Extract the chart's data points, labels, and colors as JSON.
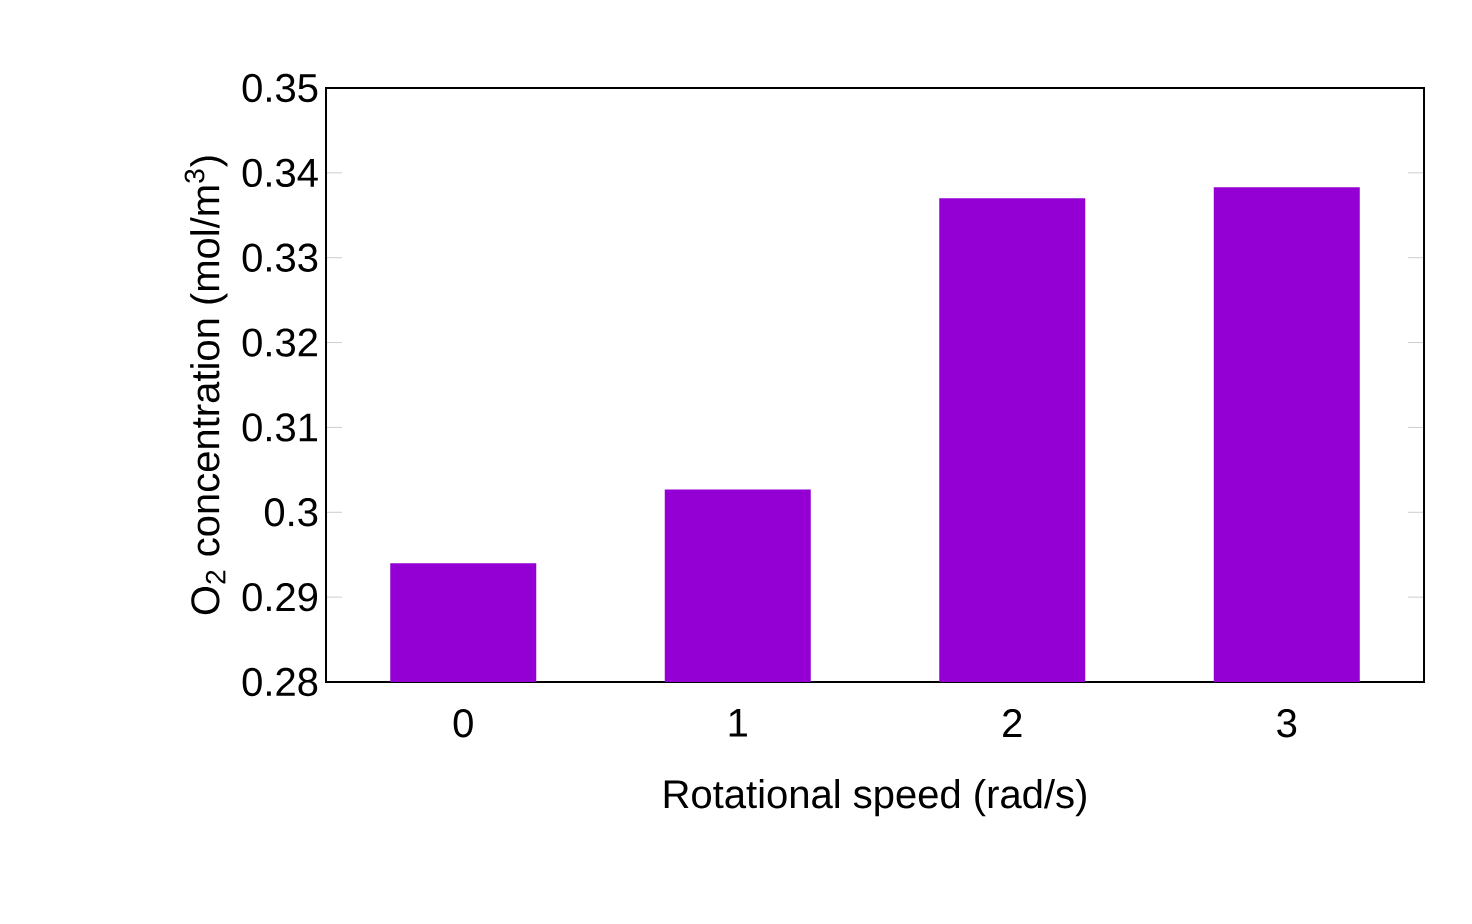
{
  "chart_data": {
    "type": "bar",
    "xlabel": "Rotational speed (rad/s)",
    "ylabel": "O$_{2}$ concentration (mol/m$^{3}$)",
    "categories": [
      "0",
      "1",
      "2",
      "3"
    ],
    "values": [
      0.294,
      0.3027,
      0.337,
      0.3383
    ],
    "color": "#9400d3",
    "ylim": [
      0.28,
      0.35
    ],
    "yticks": [
      0.28,
      0.29,
      0.3,
      0.31,
      0.32,
      0.33,
      0.34,
      0.35
    ],
    "grid": false
  }
}
